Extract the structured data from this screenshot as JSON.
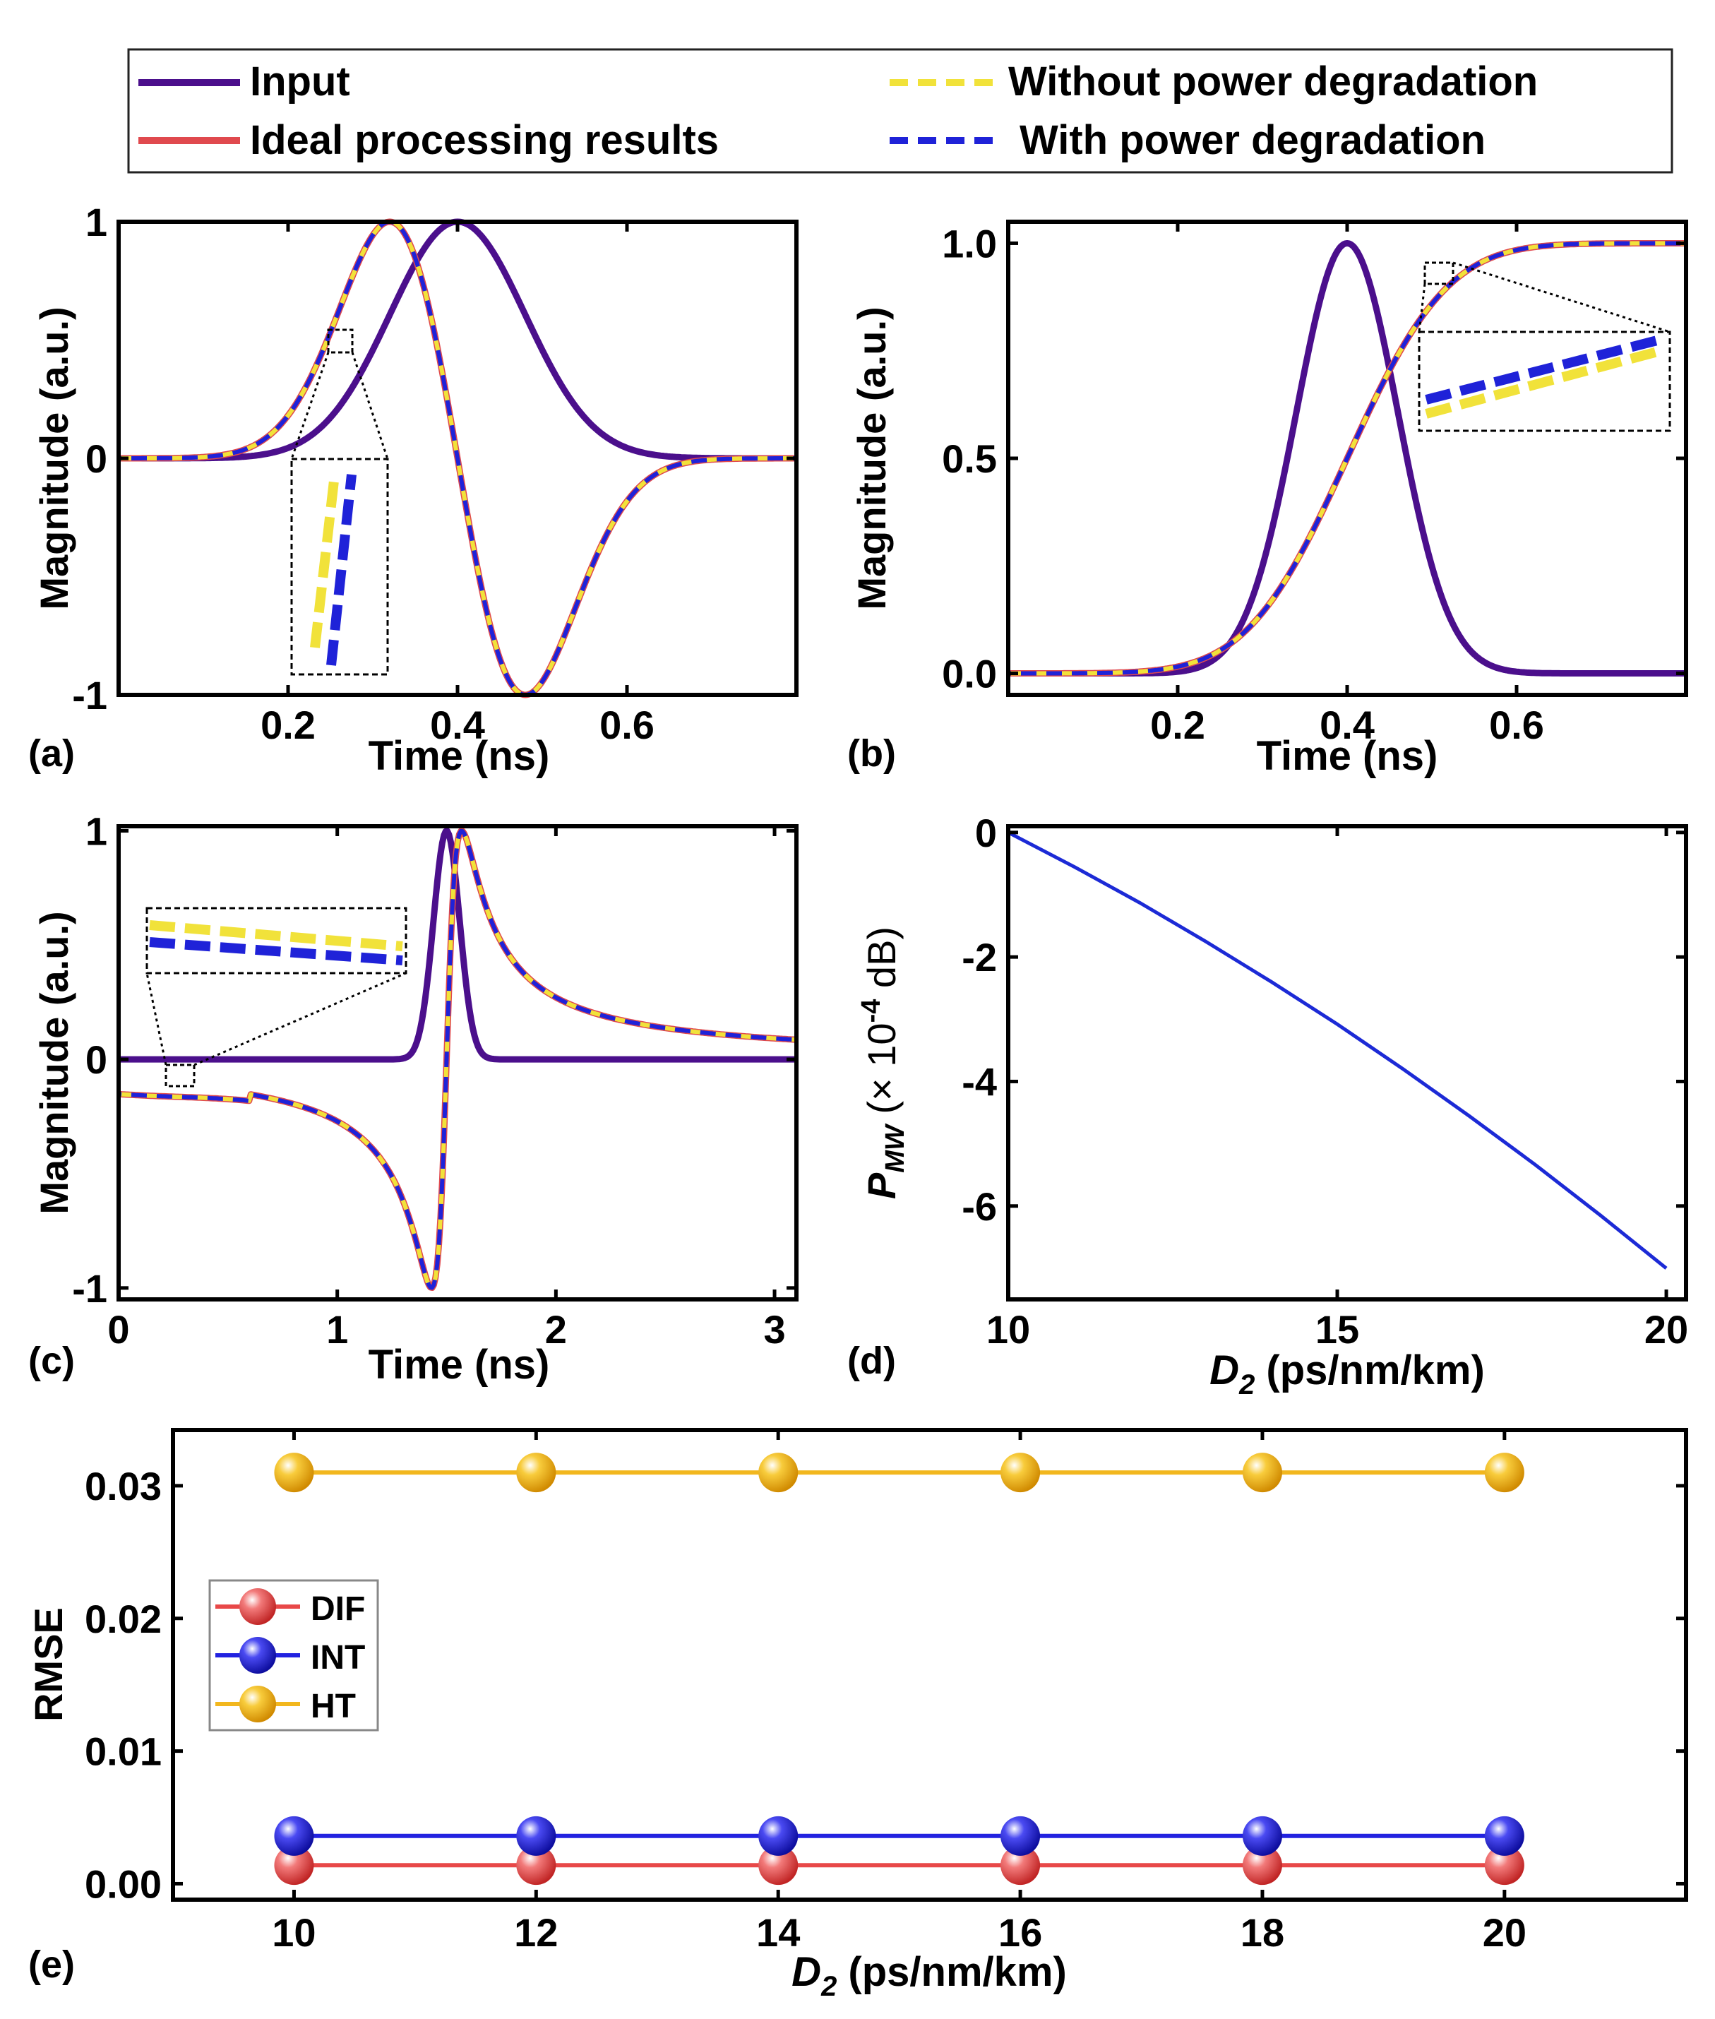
{
  "legend": {
    "input": "Input",
    "ideal": "Ideal processing results",
    "without": "Without power degradation",
    "with": "With power degradation"
  },
  "colors": {
    "input": "#4b0f8c",
    "ideal": "#e0494e",
    "without": "#f1e23a",
    "with": "#1f22d8",
    "dif": "#e84848",
    "int": "#2222e0",
    "ht": "#f2b71e",
    "line_d": "#1c2ad6"
  },
  "panels": {
    "a": {
      "tag": "(a)",
      "xlabel": "Time (ns)",
      "ylabel": "Magnitude (a.u.)"
    },
    "b": {
      "tag": "(b)",
      "xlabel": "Time (ns)",
      "ylabel": "Magnitude (a.u.)"
    },
    "c": {
      "tag": "(c)",
      "xlabel": "Time (ns)",
      "ylabel": "Magnitude (a.u.)"
    },
    "d": {
      "tag": "(d)",
      "xlabel_sym": "D",
      "xlabel_sub": "2",
      "xlabel_rest": " (ps/nm/km)",
      "ylabel_sym": "P",
      "ylabel_sub": "MW",
      "ylabel_pre": " (× 10",
      "ylabel_exp": "-4",
      "ylabel_post": " dB)"
    },
    "e": {
      "tag": "(e)",
      "xlabel_sym": "D",
      "xlabel_sub": "2",
      "xlabel_rest": " (ps/nm/km)",
      "ylabel": "RMSE"
    }
  },
  "chart_data": [
    {
      "id": "a",
      "type": "line",
      "title": "",
      "xlabel": "Time (ns)",
      "ylabel": "Magnitude (a.u.)",
      "xlim": [
        0.0,
        0.8
      ],
      "ylim": [
        -1,
        1
      ],
      "xticks": [
        0.2,
        0.4,
        0.6
      ],
      "xtick_labels": [
        "0.2",
        "0.4",
        "0.6"
      ],
      "yticks": [
        -1,
        0,
        1
      ],
      "ytick_labels": [
        "-1",
        "0",
        "1"
      ],
      "series": [
        {
          "name": "Input",
          "style": "solid",
          "func": "gauss",
          "params": {
            "t0": 0.4,
            "sigma": 0.08
          }
        },
        {
          "name": "Ideal processing results",
          "style": "solid",
          "func": "gauss_deriv",
          "params": {
            "t0": 0.4,
            "sigma": 0.08
          }
        },
        {
          "name": "Without power degradation",
          "style": "dashed",
          "func": "gauss_deriv",
          "params": {
            "t0": 0.4,
            "sigma": 0.08
          }
        },
        {
          "name": "With power degradation",
          "style": "dashed",
          "func": "gauss_deriv",
          "params": {
            "t0": 0.4,
            "sigma": 0.08
          }
        }
      ]
    },
    {
      "id": "b",
      "type": "line",
      "title": "",
      "xlabel": "Time (ns)",
      "ylabel": "Magnitude (a.u.)",
      "xlim": [
        0.0,
        0.8
      ],
      "ylim": [
        -0.05,
        1.05
      ],
      "xticks": [
        0.2,
        0.4,
        0.6
      ],
      "xtick_labels": [
        "0.2",
        "0.4",
        "0.6"
      ],
      "yticks": [
        0.0,
        0.5,
        1.0
      ],
      "ytick_labels": [
        "0.0",
        "0.5",
        "1.0"
      ],
      "series": [
        {
          "name": "Input",
          "style": "solid",
          "func": "gauss",
          "params": {
            "t0": 0.4,
            "sigma": 0.06
          }
        },
        {
          "name": "Ideal processing results",
          "style": "solid",
          "func": "erf_int",
          "params": {
            "t0": 0.4,
            "sigma": 0.06
          }
        },
        {
          "name": "Without power degradation",
          "style": "dashed",
          "func": "erf_int",
          "params": {
            "t0": 0.4,
            "sigma": 0.06
          }
        },
        {
          "name": "With power degradation",
          "style": "dashed",
          "func": "erf_int",
          "params": {
            "t0": 0.4,
            "sigma": 0.06
          }
        }
      ]
    },
    {
      "id": "c",
      "type": "line",
      "title": "",
      "xlabel": "Time (ns)",
      "ylabel": "Magnitude (a.u.)",
      "xlim": [
        0,
        3.1
      ],
      "ylim": [
        -1.05,
        1.02
      ],
      "xticks": [
        0,
        1,
        2,
        3
      ],
      "xtick_labels": [
        "0",
        "1",
        "2",
        "3"
      ],
      "yticks": [
        -1,
        0,
        1
      ],
      "ytick_labels": [
        "-1",
        "0",
        "1"
      ],
      "series": [
        {
          "name": "Input",
          "style": "solid",
          "func": "gauss",
          "params": {
            "t0": 1.5,
            "sigma": 0.06
          }
        },
        {
          "name": "Ideal processing results",
          "style": "solid",
          "func": "hilbert",
          "params": {
            "t0": 1.5,
            "sigma": 0.06
          }
        },
        {
          "name": "Without power degradation",
          "style": "dashed",
          "func": "hilbert",
          "params": {
            "t0": 1.5,
            "sigma": 0.06
          }
        },
        {
          "name": "With power degradation",
          "style": "dashed",
          "func": "hilbert",
          "params": {
            "t0": 1.5,
            "sigma": 0.06
          }
        }
      ]
    },
    {
      "id": "d",
      "type": "line",
      "title": "",
      "xlabel": "D2 (ps/nm/km)",
      "ylabel": "PMW (× 10-4 dB)",
      "xlim": [
        10,
        20.3
      ],
      "ylim": [
        -7.5,
        0.1
      ],
      "xticks": [
        10,
        15,
        20
      ],
      "xtick_labels": [
        "10",
        "15",
        "20"
      ],
      "yticks": [
        0,
        -2,
        -4,
        -6
      ],
      "ytick_labels": [
        "0",
        "-2",
        "-4",
        "-6"
      ],
      "series": [
        {
          "name": "P_MW",
          "x": [
            10,
            11,
            12,
            13,
            14,
            15,
            16,
            17,
            18,
            19,
            20
          ],
          "y": [
            0.0,
            -0.55,
            -1.13,
            -1.75,
            -2.4,
            -3.08,
            -3.8,
            -4.55,
            -5.33,
            -6.15,
            -7.0
          ]
        }
      ]
    },
    {
      "id": "e",
      "type": "line",
      "title": "",
      "xlabel": "D2 (ps/nm/km)",
      "ylabel": "RMSE",
      "xlim": [
        9,
        21.5
      ],
      "ylim": [
        -0.0012,
        0.0342
      ],
      "xticks": [
        10,
        12,
        14,
        16,
        18,
        20
      ],
      "xtick_labels": [
        "10",
        "12",
        "14",
        "16",
        "18",
        "20"
      ],
      "yticks": [
        0.0,
        0.01,
        0.02,
        0.03
      ],
      "ytick_labels": [
        "0.00",
        "0.01",
        "0.02",
        "0.03"
      ],
      "legend": [
        "DIF",
        "INT",
        "HT"
      ],
      "series": [
        {
          "name": "DIF",
          "x": [
            10,
            12,
            14,
            16,
            18,
            20
          ],
          "values": [
            0.0014,
            0.0014,
            0.0014,
            0.0014,
            0.0014,
            0.0014
          ]
        },
        {
          "name": "INT",
          "x": [
            10,
            12,
            14,
            16,
            18,
            20
          ],
          "values": [
            0.0036,
            0.0036,
            0.0036,
            0.0036,
            0.0036,
            0.0036
          ]
        },
        {
          "name": "HT",
          "x": [
            10,
            12,
            14,
            16,
            18,
            20
          ],
          "values": [
            0.031,
            0.031,
            0.031,
            0.031,
            0.031,
            0.031
          ]
        }
      ]
    }
  ]
}
